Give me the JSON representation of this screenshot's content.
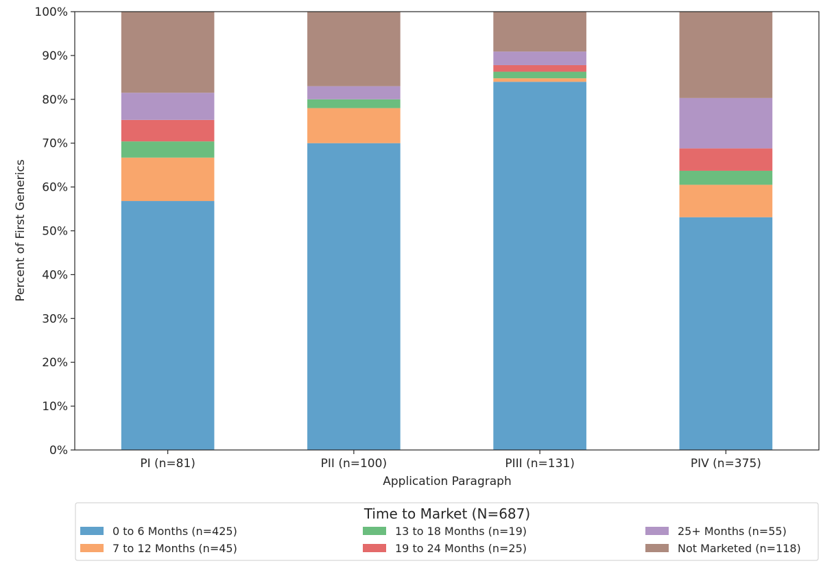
{
  "chart_data": {
    "type": "bar",
    "stacked": true,
    "title": "",
    "xlabel": "Application Paragraph",
    "ylabel": "Percent of First Generics",
    "ylim": [
      0,
      100
    ],
    "y_ticks": [
      "0%",
      "10%",
      "20%",
      "30%",
      "40%",
      "50%",
      "60%",
      "70%",
      "80%",
      "90%",
      "100%"
    ],
    "categories": [
      "PI (n=81)",
      "PII (n=100)",
      "PIII (n=131)",
      "PIV (n=375)"
    ],
    "series": [
      {
        "name": "0 to 6 Months (n=425)",
        "color": "#5fa1cb",
        "values": [
          56.8,
          70.0,
          84.0,
          53.1
        ]
      },
      {
        "name": "7 to 12 Months (n=45)",
        "color": "#f9a66c",
        "values": [
          9.9,
          8.0,
          0.8,
          7.4
        ]
      },
      {
        "name": "13 to 18 Months (n=19)",
        "color": "#6bbd7e",
        "values": [
          3.7,
          2.0,
          1.5,
          3.2
        ]
      },
      {
        "name": "19 to 24 Months (n=25)",
        "color": "#e46a6a",
        "values": [
          4.9,
          0.0,
          1.5,
          5.1
        ]
      },
      {
        "name": "25+ Months (n=55)",
        "color": "#b195c5",
        "values": [
          6.2,
          3.0,
          3.1,
          11.5
        ]
      },
      {
        "name": "Not Marketed (n=118)",
        "color": "#ad8a7e",
        "values": [
          18.5,
          17.0,
          9.1,
          19.7
        ]
      }
    ],
    "grid": false,
    "legend": {
      "title": "Time to Market (N=687)",
      "placement": "bottom"
    }
  }
}
